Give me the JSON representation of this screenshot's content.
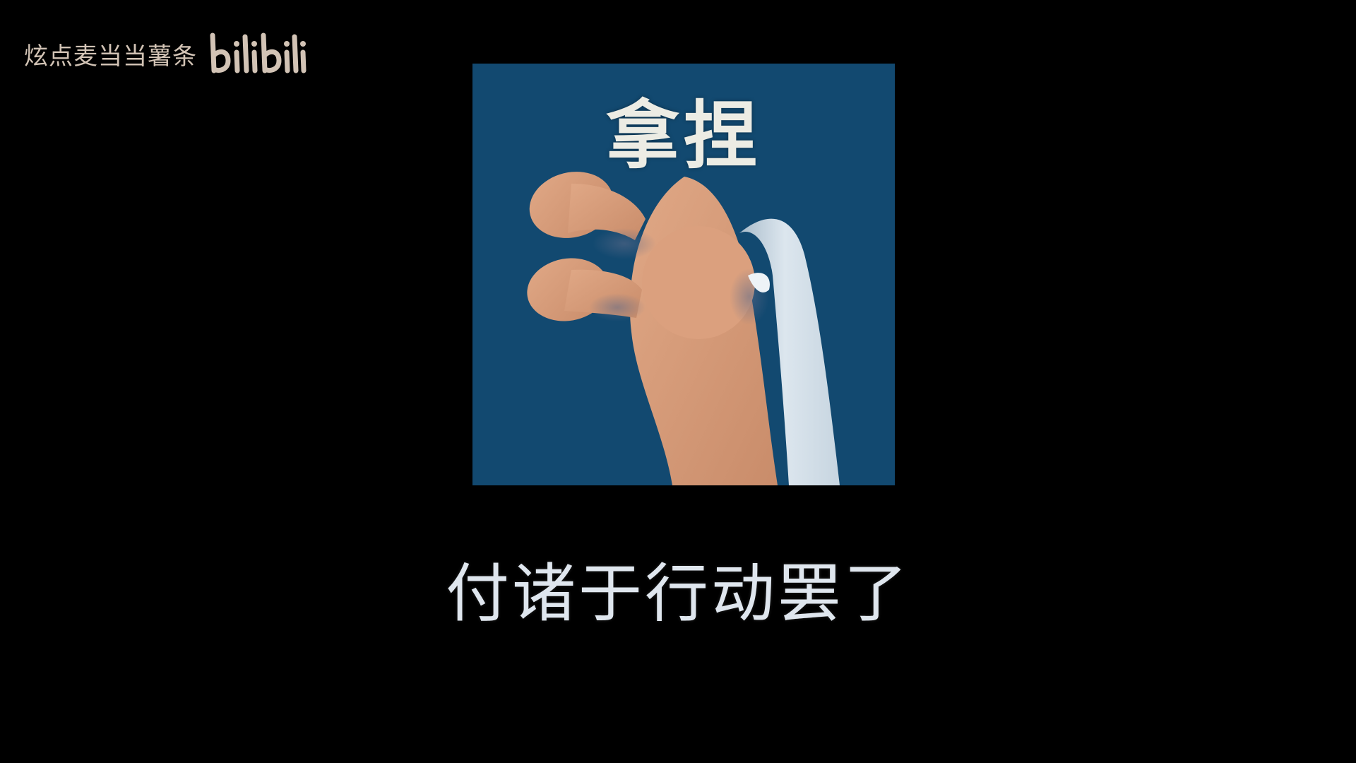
{
  "watermark": {
    "author": "炫点麦当当薯条",
    "logo": "bilibili"
  },
  "sticker": {
    "title": "拿捏",
    "background_color": "#124970",
    "skin_color": "#d49a78",
    "sleeve_color": "#dce6ee"
  },
  "subtitle": {
    "text": "付诸于行动罢了"
  }
}
